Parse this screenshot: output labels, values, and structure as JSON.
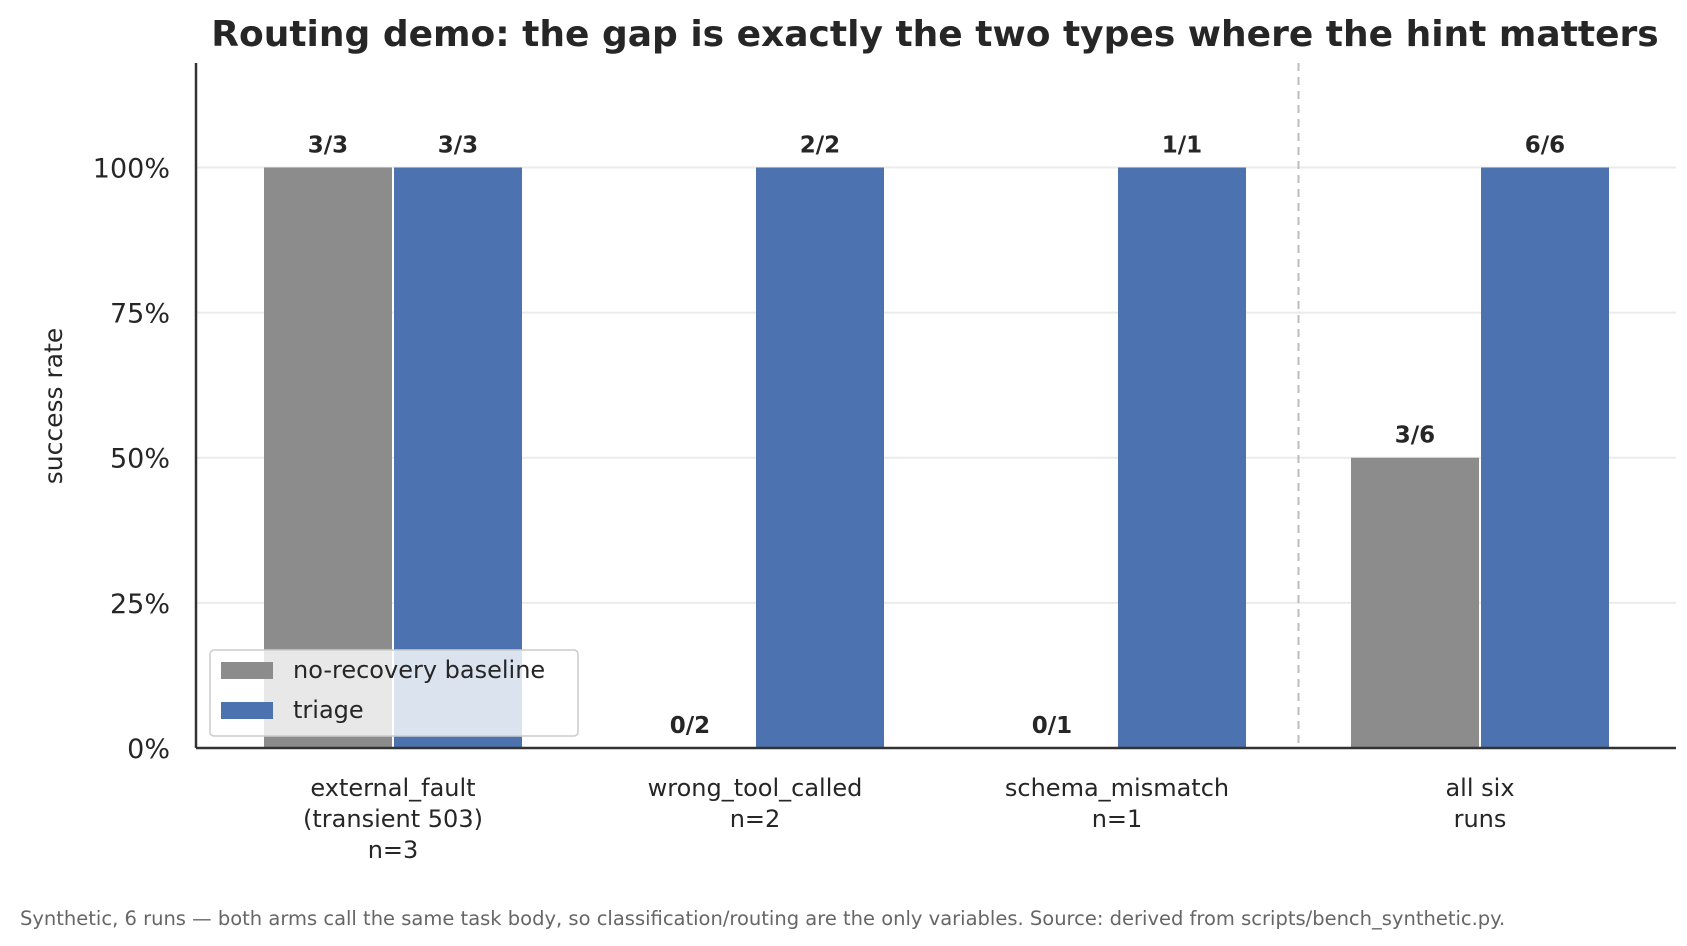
{
  "chart_data": {
    "type": "bar",
    "title": "Routing demo: the gap is exactly the two types where the hint matters",
    "ylabel": "success rate",
    "xlabel": "",
    "ylim": [
      0,
      1.18
    ],
    "yticks": [
      0,
      0.25,
      0.5,
      0.75,
      1.0
    ],
    "ytick_labels": [
      "0%",
      "25%",
      "50%",
      "75%",
      "100%"
    ],
    "grid": "horizontal",
    "legend_position": "lower-left",
    "categories": [
      [
        "external_fault",
        "(transient 503)",
        "n=3"
      ],
      [
        "wrong_tool_called",
        "n=2"
      ],
      [
        "schema_mismatch",
        "n=1"
      ],
      [
        "all six",
        "runs"
      ]
    ],
    "separator_after_category": 2,
    "series": [
      {
        "name": "no-recovery baseline",
        "color": "#8c8c8c",
        "values": [
          1.0,
          0.0,
          0.0,
          0.5
        ],
        "labels": [
          "3/3",
          "0/2",
          "0/1",
          "3/6"
        ]
      },
      {
        "name": "triage",
        "color": "#4c72b0",
        "values": [
          1.0,
          1.0,
          1.0,
          1.0
        ],
        "labels": [
          "3/3",
          "2/2",
          "1/1",
          "6/6"
        ]
      }
    ]
  },
  "footnote": "Synthetic, 6 runs — both arms call the same task body, so classification/routing are the only variables. Source: derived from scripts/bench_synthetic.py."
}
